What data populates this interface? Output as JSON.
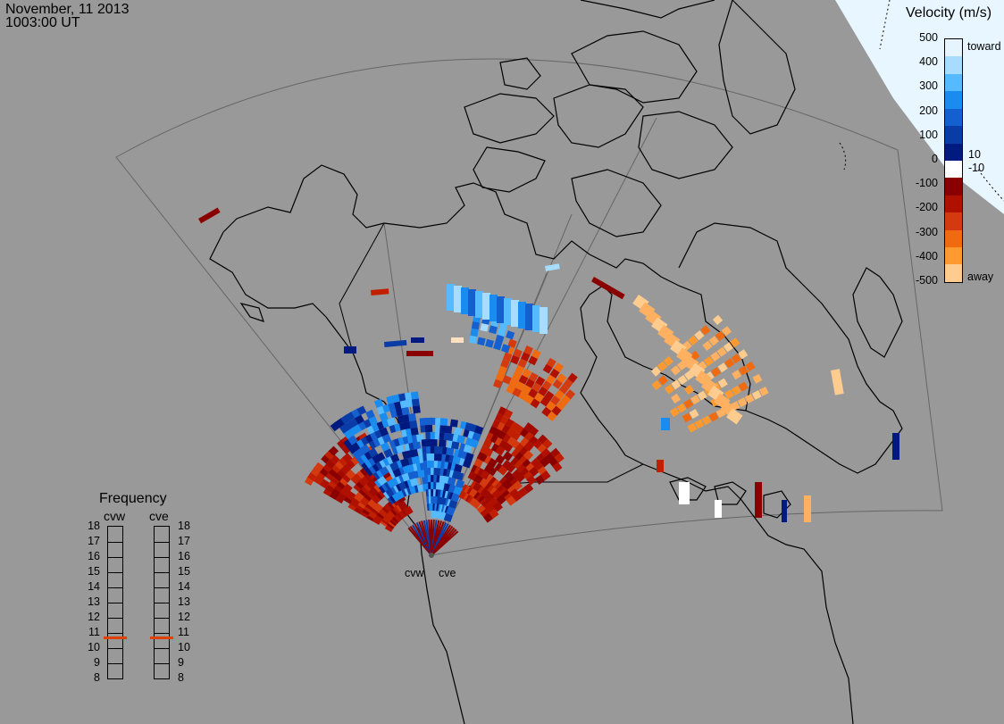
{
  "header": {
    "date": "November, 11 2013",
    "time": "1003:00 UT"
  },
  "velocity_scale": {
    "title": "Velocity (m/s)",
    "ticks": [
      "500",
      "400",
      "300",
      "200",
      "100",
      "0",
      "-100",
      "-200",
      "-300",
      "-400",
      "-500"
    ],
    "toward_label": "toward",
    "away_label": "away",
    "inner_labels": [
      "10",
      "-10"
    ],
    "colors": [
      "#e6f4ff",
      "#a8dcff",
      "#55baff",
      "#1a8cf0",
      "#1460d0",
      "#0a3ca8",
      "#001a80",
      "#ffffff",
      "#8a0000",
      "#b01000",
      "#d43a10",
      "#f06a10",
      "#ff9a30",
      "#ffcc90"
    ]
  },
  "radars": {
    "west_label": "cvw",
    "east_label": "cve"
  },
  "frequency": {
    "title": "Frequency",
    "cvw_label": "cvw",
    "cve_label": "cve",
    "ticks": [
      "18",
      "17",
      "16",
      "15",
      "14",
      "13",
      "12",
      "11",
      "10",
      "9",
      "8"
    ],
    "cvw_value_mhz": 10.7,
    "cve_value_mhz": 10.7,
    "marker_color": "#e04000"
  },
  "colors": {
    "background": "#999999",
    "terminator": "#e8f6ff"
  }
}
